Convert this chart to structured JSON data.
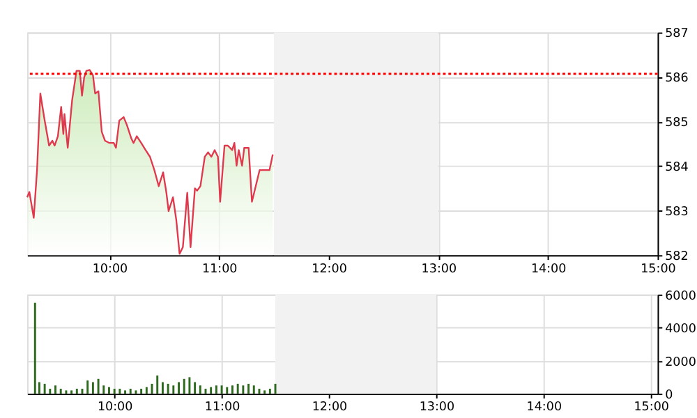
{
  "chart_data": [
    {
      "type": "area",
      "xlim": [
        9.25,
        15
      ],
      "ylim": [
        582,
        587
      ],
      "xticks": [
        {
          "value": 10,
          "label": "10:00"
        },
        {
          "value": 11,
          "label": "11:00"
        },
        {
          "value": 12,
          "label": "12:00"
        },
        {
          "value": 13,
          "label": "13:00"
        },
        {
          "value": 14,
          "label": "14:00"
        },
        {
          "value": 15,
          "label": "15:00"
        }
      ],
      "yticks": [
        582,
        583,
        584,
        585,
        586,
        587
      ],
      "grid": true,
      "series": [
        {
          "color": "#e0384c",
          "x": [
            9.25,
            9.27,
            9.31,
            9.34,
            9.37,
            9.41,
            9.45,
            9.48,
            9.5,
            9.53,
            9.56,
            9.58,
            9.59,
            9.62,
            9.66,
            9.7,
            9.73,
            9.75,
            9.77,
            9.79,
            9.82,
            9.85,
            9.87,
            9.9,
            9.93,
            9.96,
            10.0,
            10.04,
            10.06,
            10.09,
            10.13,
            10.16,
            10.2,
            10.22,
            10.25,
            10.29,
            10.33,
            10.37,
            10.41,
            10.45,
            10.49,
            10.52,
            10.54,
            10.58,
            10.61,
            10.64,
            10.67,
            10.71,
            10.74,
            10.78,
            10.8,
            10.83,
            10.87,
            10.9,
            10.93,
            10.96,
            10.99,
            11.01,
            11.05,
            11.08,
            11.12,
            11.14,
            11.16,
            11.18,
            11.21,
            11.23,
            11.27,
            11.3,
            11.32,
            11.37,
            11.41,
            11.46,
            11.49
          ],
          "values": [
            583.3,
            583.42,
            582.84,
            583.91,
            585.63,
            585.02,
            584.46,
            584.57,
            584.46,
            584.67,
            585.33,
            584.72,
            585.17,
            584.41,
            585.48,
            586.14,
            586.14,
            585.58,
            585.99,
            586.14,
            586.16,
            586.04,
            585.63,
            585.68,
            584.77,
            584.57,
            584.52,
            584.52,
            584.41,
            585.02,
            585.1,
            584.92,
            584.62,
            584.52,
            584.67,
            584.52,
            584.36,
            584.21,
            583.91,
            583.55,
            583.86,
            583.4,
            582.99,
            583.3,
            582.79,
            582.03,
            582.18,
            583.4,
            582.18,
            583.5,
            583.45,
            583.55,
            584.21,
            584.31,
            584.21,
            584.36,
            584.21,
            583.2,
            584.46,
            584.46,
            584.36,
            584.52,
            584.01,
            584.36,
            584.01,
            584.41,
            584.41,
            583.2,
            583.4,
            583.91,
            583.91,
            583.91,
            584.26
          ]
        }
      ],
      "ref_lines": [
        {
          "axis": "y",
          "value": 586.07,
          "color": "#ff0000",
          "line_style": "dotted"
        }
      ],
      "bands": [
        {
          "axis": "x",
          "from": 11.5,
          "to": 13,
          "color": "#f2f2f2"
        }
      ]
    },
    {
      "type": "bar",
      "xlim": [
        9.25,
        15
      ],
      "ylim": [
        0,
        6000
      ],
      "xticks": [
        {
          "value": 10,
          "label": "10:00"
        },
        {
          "value": 11,
          "label": "11:00"
        },
        {
          "value": 12,
          "label": "12:00"
        },
        {
          "value": 13,
          "label": "13:00"
        },
        {
          "value": 14,
          "label": "14:00"
        },
        {
          "value": 15,
          "label": "15:00"
        }
      ],
      "yticks": [
        0,
        2000,
        4000,
        6000
      ],
      "grid": true,
      "series": [
        {
          "color": "#2d6a1e",
          "x": [
            9.26,
            9.3,
            9.35,
            9.4,
            9.45,
            9.5,
            9.55,
            9.6,
            9.65,
            9.7,
            9.75,
            9.8,
            9.85,
            9.9,
            9.95,
            10.0,
            10.05,
            10.1,
            10.15,
            10.2,
            10.25,
            10.3,
            10.35,
            10.4,
            10.45,
            10.5,
            10.55,
            10.6,
            10.65,
            10.7,
            10.75,
            10.8,
            10.85,
            10.9,
            10.95,
            11.0,
            11.05,
            11.1,
            11.15,
            11.2,
            11.25,
            11.3,
            11.35,
            11.4,
            11.45,
            11.5
          ],
          "values": [
            5500,
            700,
            600,
            300,
            500,
            300,
            200,
            200,
            300,
            300,
            800,
            700,
            900,
            500,
            400,
            300,
            300,
            200,
            300,
            200,
            300,
            400,
            600,
            1100,
            700,
            600,
            500,
            700,
            900,
            1000,
            700,
            500,
            300,
            400,
            500,
            500,
            400,
            500,
            600,
            500,
            600,
            500,
            300,
            200,
            300,
            600
          ]
        }
      ],
      "bands": [
        {
          "axis": "x",
          "from": 11.5,
          "to": 13,
          "color": "#f2f2f2"
        }
      ]
    }
  ]
}
